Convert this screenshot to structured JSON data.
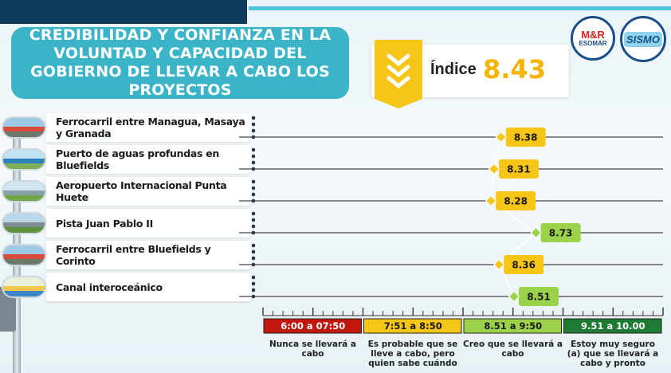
{
  "title": "CREDIBILIDAD Y CONFIANZA EN LA VOLUNTAD Y CAPACIDAD DEL GOBIERNO DE LLEVAR A CABO LOS PROYECTOS",
  "index": {
    "label": "Índice",
    "value": "8.43"
  },
  "logos": {
    "mr_text": "M&R",
    "mr_sub": "ESOMAR",
    "sismo_text": "SISMO"
  },
  "colors": {
    "title_bg": "#3cb4c8",
    "index_value": "#f5b400",
    "yellow_box": "#f5c518",
    "green_box": "#9bd24a",
    "scale_red": "#c0180c",
    "scale_yellow": "#f5c518",
    "scale_lightgreen": "#9bd24a",
    "scale_darkgreen": "#1e7b34"
  },
  "chart_data": {
    "type": "line",
    "xlim": [
      6.0,
      10.0
    ],
    "categories": [
      "Ferrocarril entre Managua, Masaya y Granada",
      "Puerto de aguas profundas en Bluefields",
      "Aeropuerto Internacional Punta Huete",
      "Pista Juan Pablo II",
      "Ferrocarril entre Bluefields y Corinto",
      "Canal interoceánico"
    ],
    "values": [
      8.38,
      8.31,
      8.28,
      8.73,
      8.36,
      8.51
    ],
    "value_labels": [
      "8.38",
      "8.31",
      "8.28",
      "8.73",
      "8.36",
      "8.51"
    ],
    "row_icons": [
      "train-photo",
      "port-photo",
      "airport-photo",
      "highway-photo",
      "train-photo",
      "canal-photo"
    ],
    "scale": [
      {
        "range": "6:00 a 07:50",
        "from": 6.0,
        "to": 7.5,
        "description": "Nunca se llevará a cabo",
        "color": "#c0180c"
      },
      {
        "range": "7:51 a 8:50",
        "from": 7.51,
        "to": 8.5,
        "description": "Es probable que se lleve a cabo, pero quien sabe cuándo",
        "color": "#f5c518"
      },
      {
        "range": "8.51 a 9:50",
        "from": 8.51,
        "to": 9.5,
        "description": "Creo que se llevará a cabo",
        "color": "#9bd24a"
      },
      {
        "range": "9.51 a 10.00",
        "from": 9.51,
        "to": 10.0,
        "description": "Estoy muy seguro (a) que se llevará a cabo y pronto",
        "color": "#1e7b34"
      }
    ]
  }
}
